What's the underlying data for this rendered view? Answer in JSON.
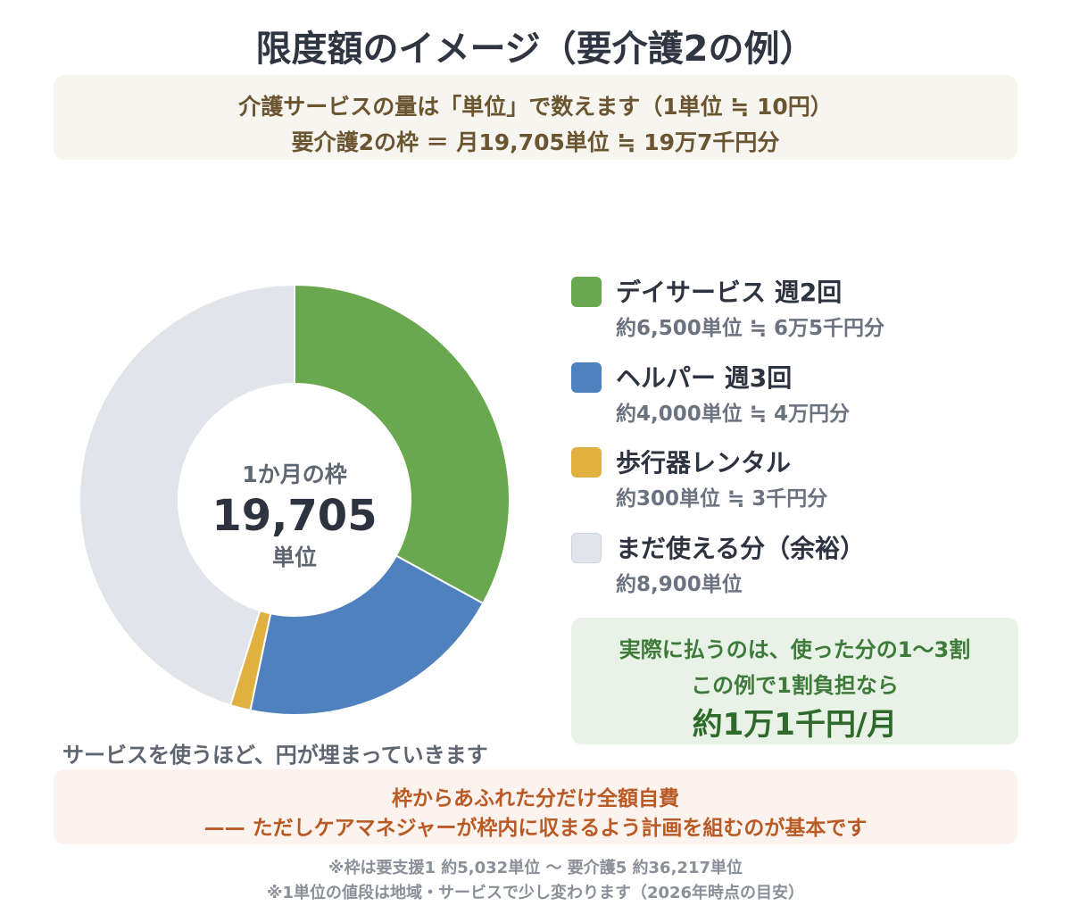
{
  "title": "限度額のイメージ（要介護2の例）",
  "intro": {
    "line1": "介護サービスの量は「単位」で数えます（1単位 ≒ 10円）",
    "line2": "要介護2の枠 ＝ 月19,705単位 ≒ 19万7千円分"
  },
  "chart_data": {
    "type": "pie",
    "title": "",
    "total": 19705,
    "center": {
      "top": "1か月の枠",
      "value": "19,705",
      "unit": "単位"
    },
    "series": [
      {
        "name": "デイサービス 週2回",
        "value": 6500,
        "sub": "約6,500単位 ≒ 6万5千円分",
        "color": "#6aa84f"
      },
      {
        "name": "ヘルパー 週3回",
        "value": 4000,
        "sub": "約4,000単位 ≒ 4万円分",
        "color": "#4e81bd"
      },
      {
        "name": "歩行器レンタル",
        "value": 300,
        "sub": "約300単位 ≒ 3千円分",
        "color": "#e0b040"
      },
      {
        "name": "まだ使える分（余裕）",
        "value": 8900,
        "sub": "約8,900単位",
        "color": "#e1e4ea"
      }
    ],
    "legend_position": "right"
  },
  "chart_caption": "サービスを使うほど、円が埋まっていきます",
  "payment": {
    "line1": "実際に払うのは、使った分の1〜3割",
    "line2": "この例で1割負担なら",
    "line3": "約1万1千円/月"
  },
  "warning": {
    "line1": "枠からあふれた分だけ全額自費",
    "line2": "—— ただしケアマネジャーが枠内に収まるよう計画を組むのが基本です"
  },
  "notes": {
    "line1": "※枠は要支援1 約5,032単位 〜 要介護5 約36,217単位",
    "line2": "※1単位の値段は地域・サービスで少し変わります（2026年時点の目安）"
  }
}
